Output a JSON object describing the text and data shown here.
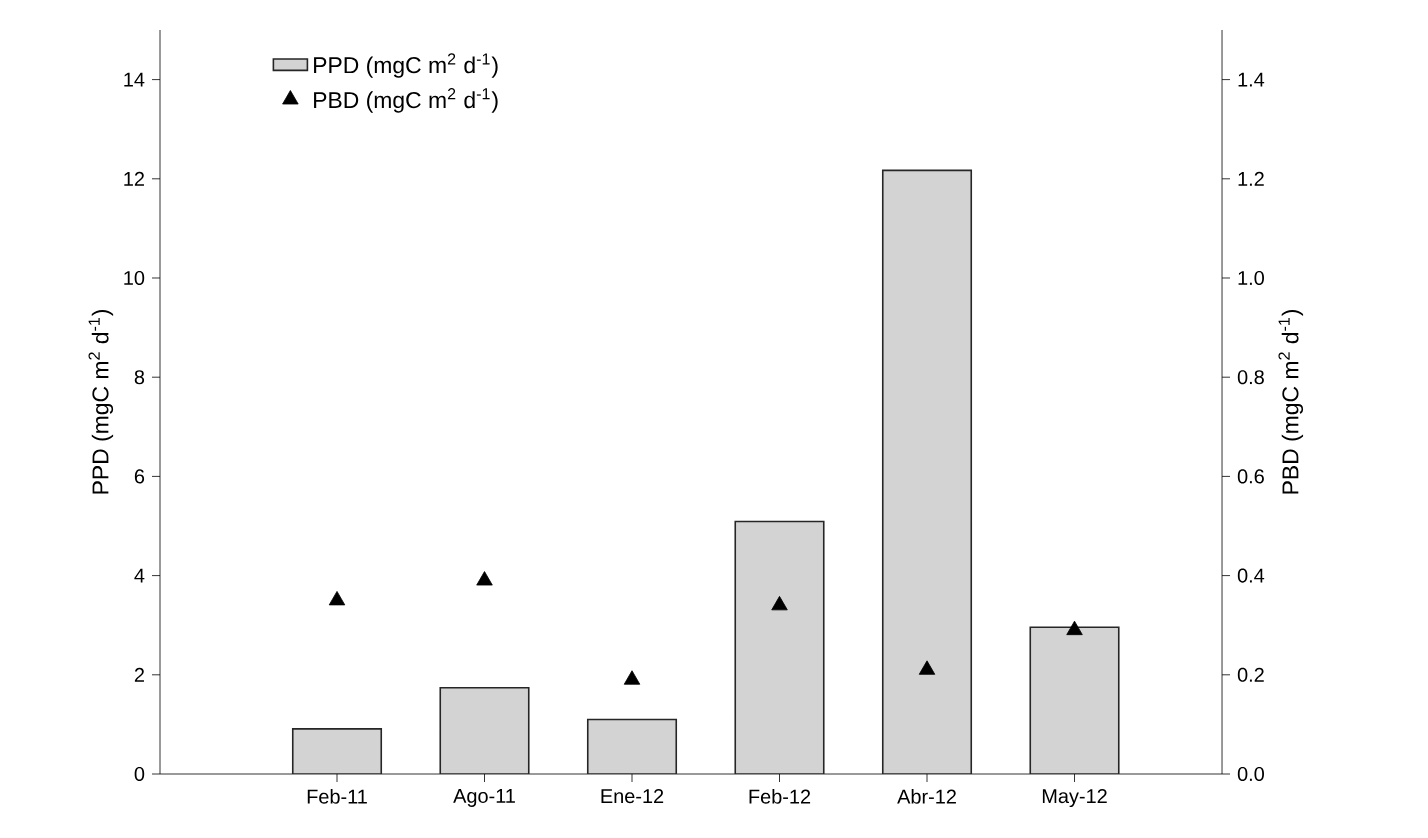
{
  "chart_data": {
    "type": "bar",
    "categories": [
      "Feb-11",
      "Ago-11",
      "Ene-12",
      "Feb-12",
      "Abr-12",
      "May-12"
    ],
    "series": [
      {
        "name": "PPD (mgC m$^{2}$ d$^{-1}$)",
        "color": "#d3d3d3",
        "values": [
          0.91,
          1.74,
          1.1,
          5.09,
          12.17,
          2.96
        ]
      },
      {
        "name": "PBD (mgC m$^{2}$ d$^{-1}$)",
        "type": "scatter",
        "axis": "y2",
        "color": "#000000",
        "values": [
          0.35,
          0.39,
          0.19,
          0.34,
          0.21,
          0.29
        ]
      }
    ],
    "ylabel": "PPD (mgC m$^{2}$ d$^{-1}$)",
    "y2label": "PBD (mgC m$^{2}$ d$^{-1}$)",
    "ylim": [
      0,
      15
    ],
    "yticks": [
      0,
      2,
      4,
      6,
      8,
      10,
      12,
      14
    ],
    "y2lim": [
      0,
      1.5
    ],
    "y2ticks": [
      {
        "value": 0,
        "label": "0.0"
      },
      {
        "value": 0.2,
        "label": "0.2"
      },
      {
        "value": 0.4,
        "label": "0.4"
      },
      {
        "value": 0.6,
        "label": "0.6"
      },
      {
        "value": 0.8,
        "label": "0.8"
      },
      {
        "value": 1,
        "label": "1.0"
      },
      {
        "value": 1.2,
        "label": "1.2"
      },
      {
        "value": 1.4,
        "label": "1.4"
      }
    ],
    "marker": "triangle",
    "legend": "top left",
    "grid": false
  }
}
